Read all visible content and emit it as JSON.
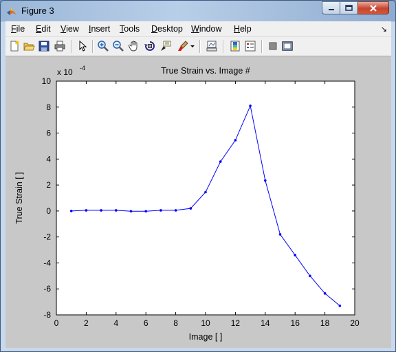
{
  "window": {
    "title": "Figure 3"
  },
  "menu": {
    "items": [
      {
        "key": "F",
        "rest": "ile"
      },
      {
        "key": "E",
        "rest": "dit"
      },
      {
        "key": "V",
        "rest": "iew"
      },
      {
        "key": "I",
        "rest": "nsert"
      },
      {
        "key": "T",
        "rest": "ools"
      },
      {
        "key": "D",
        "rest": "esktop"
      },
      {
        "key": "W",
        "rest": "indow"
      },
      {
        "key": "H",
        "rest": "elp"
      }
    ]
  },
  "toolbar": {
    "icons": [
      "new-figure-icon",
      "open-file-icon",
      "save-icon",
      "print-icon",
      "select-arrow-icon",
      "zoom-in-icon",
      "zoom-out-icon",
      "pan-hand-icon",
      "rotate-3d-icon",
      "data-cursor-icon",
      "brush-icon",
      "brush-dropdown-icon",
      "link-plot-icon",
      "insert-colorbar-icon",
      "insert-legend-icon",
      "hide-plot-tools-icon",
      "show-plot-tools-icon"
    ]
  },
  "colors": {
    "line": "#0000ff",
    "figure_bg": "#c8c8c8",
    "axes_bg": "#ffffff"
  },
  "chart_data": {
    "type": "line",
    "title": "True Strain vs. Image #",
    "xlabel": "Image [ ]",
    "ylabel": "True Strain [ ]",
    "y_exponent_label": "x 10",
    "y_exponent": "-4",
    "xlim": [
      0,
      20
    ],
    "ylim": [
      -8,
      10
    ],
    "xticks": [
      0,
      2,
      4,
      6,
      8,
      10,
      12,
      14,
      16,
      18,
      20
    ],
    "yticks": [
      -8,
      -6,
      -4,
      -2,
      0,
      2,
      4,
      6,
      8,
      10
    ],
    "grid": false,
    "marker": "dot",
    "series": [
      {
        "x": [
          1,
          2,
          3,
          4,
          5,
          6,
          7,
          8,
          9,
          10,
          11,
          12,
          13,
          14,
          15,
          16,
          17,
          18,
          19
        ],
        "y": [
          0.0,
          0.05,
          0.05,
          0.05,
          -0.02,
          -0.02,
          0.05,
          0.05,
          0.2,
          1.45,
          3.8,
          5.45,
          8.1,
          2.35,
          -1.8,
          -3.4,
          -5.0,
          -6.35,
          -7.3
        ]
      }
    ]
  }
}
